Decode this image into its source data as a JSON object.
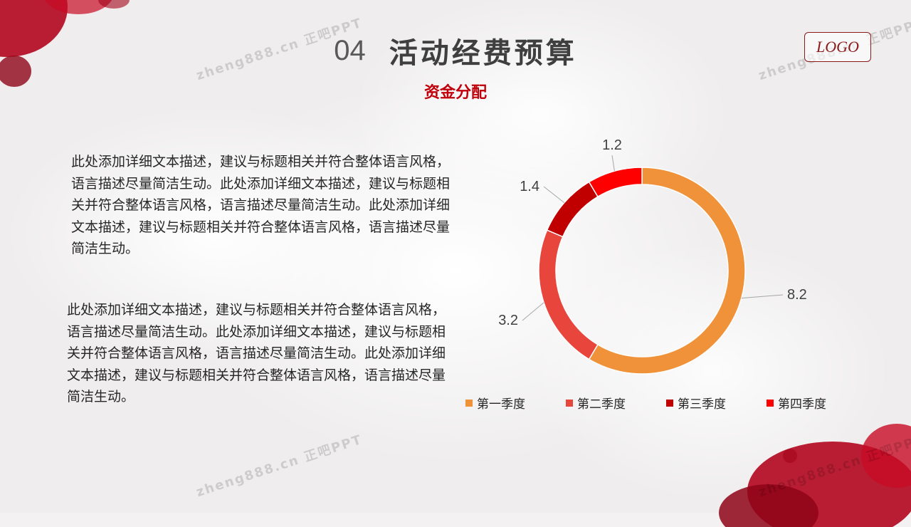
{
  "header": {
    "number": "04",
    "title": "活动经费预算",
    "subtitle": "资金分配",
    "logo": "LOGO"
  },
  "watermark": "zheng888.cn 正吧PPT",
  "body": {
    "paragraph1": "此处添加详细文本描述，建议与标题相关并符合整体语言风格，语言描述尽量简洁生动。此处添加详细文本描述，建议与标题相关并符合整体语言风格，语言描述尽量简洁生动。此处添加详细文本描述，建议与标题相关并符合整体语言风格，语言描述尽量简洁生动。",
    "paragraph2": "此处添加详细文本描述，建议与标题相关并符合整体语言风格，语言描述尽量简洁生动。此处添加详细文本描述，建议与标题相关并符合整体语言风格，语言描述尽量简洁生动。此处添加详细文本描述，建议与标题相关并符合整体语言风格，语言描述尽量简洁生动。"
  },
  "colors": {
    "accent": "#c0000b",
    "q1": "#f0923a",
    "q2": "#e8453c",
    "q3": "#c00000",
    "q4": "#ff0000"
  },
  "chart_data": {
    "type": "pie",
    "variant": "doughnut",
    "title": "",
    "categories": [
      "第一季度",
      "第二季度",
      "第三季度",
      "第四季度"
    ],
    "values": [
      8.2,
      3.2,
      1.4,
      1.2
    ],
    "data_labels": [
      "8.2",
      "3.2",
      "1.4",
      "1.2"
    ],
    "colors": [
      "#f0923a",
      "#e8453c",
      "#c00000",
      "#ff0000"
    ],
    "legend_position": "bottom"
  }
}
